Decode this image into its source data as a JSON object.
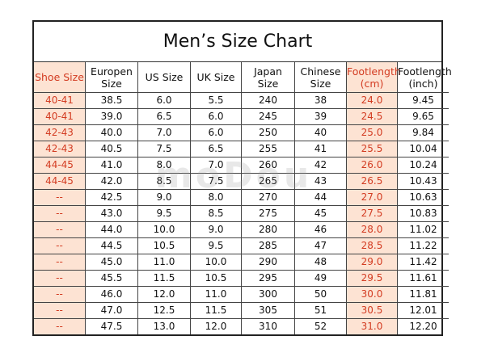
{
  "title": "Men’s Size Chart",
  "watermark": "moDou",
  "colors": {
    "highlight_bg": "#fde3d3",
    "highlight_text": "#d33c22",
    "border": "#222222"
  },
  "headers": [
    {
      "lines": [
        "Shoe Size"
      ],
      "highlight": true
    },
    {
      "lines": [
        "Europen",
        "Size"
      ],
      "highlight": false
    },
    {
      "lines": [
        "US Size"
      ],
      "highlight": false
    },
    {
      "lines": [
        "UK Size"
      ],
      "highlight": false
    },
    {
      "lines": [
        "Japan",
        "Size"
      ],
      "highlight": false
    },
    {
      "lines": [
        "Chinese",
        "Size"
      ],
      "highlight": false
    },
    {
      "lines": [
        "Footlength",
        "(cm)"
      ],
      "highlight": true
    },
    {
      "lines": [
        "Footlength",
        "(inch)"
      ],
      "highlight": false
    }
  ],
  "rows": [
    [
      "40-41",
      "38.5",
      "6.0",
      "5.5",
      "240",
      "38",
      "24.0",
      "9.45"
    ],
    [
      "40-41",
      "39.0",
      "6.5",
      "6.0",
      "245",
      "39",
      "24.5",
      "9.65"
    ],
    [
      "42-43",
      "40.0",
      "7.0",
      "6.0",
      "250",
      "40",
      "25.0",
      "9.84"
    ],
    [
      "42-43",
      "40.5",
      "7.5",
      "6.5",
      "255",
      "41",
      "25.5",
      "10.04"
    ],
    [
      "44-45",
      "41.0",
      "8.0",
      "7.0",
      "260",
      "42",
      "26.0",
      "10.24"
    ],
    [
      "44-45",
      "42.0",
      "8.5",
      "7.5",
      "265",
      "43",
      "26.5",
      "10.43"
    ],
    [
      "--",
      "42.5",
      "9.0",
      "8.0",
      "270",
      "44",
      "27.0",
      "10.63"
    ],
    [
      "--",
      "43.0",
      "9.5",
      "8.5",
      "275",
      "45",
      "27.5",
      "10.83"
    ],
    [
      "--",
      "44.0",
      "10.0",
      "9.0",
      "280",
      "46",
      "28.0",
      "11.02"
    ],
    [
      "--",
      "44.5",
      "10.5",
      "9.5",
      "285",
      "47",
      "28.5",
      "11.22"
    ],
    [
      "--",
      "45.0",
      "11.0",
      "10.0",
      "290",
      "48",
      "29.0",
      "11.42"
    ],
    [
      "--",
      "45.5",
      "11.5",
      "10.5",
      "295",
      "49",
      "29.5",
      "11.61"
    ],
    [
      "--",
      "46.0",
      "12.0",
      "11.0",
      "300",
      "50",
      "30.0",
      "11.81"
    ],
    [
      "--",
      "47.0",
      "12.5",
      "11.5",
      "305",
      "51",
      "30.5",
      "12.01"
    ],
    [
      "--",
      "47.5",
      "13.0",
      "12.0",
      "310",
      "52",
      "31.0",
      "12.20"
    ]
  ],
  "highlight_columns": [
    0,
    6
  ]
}
